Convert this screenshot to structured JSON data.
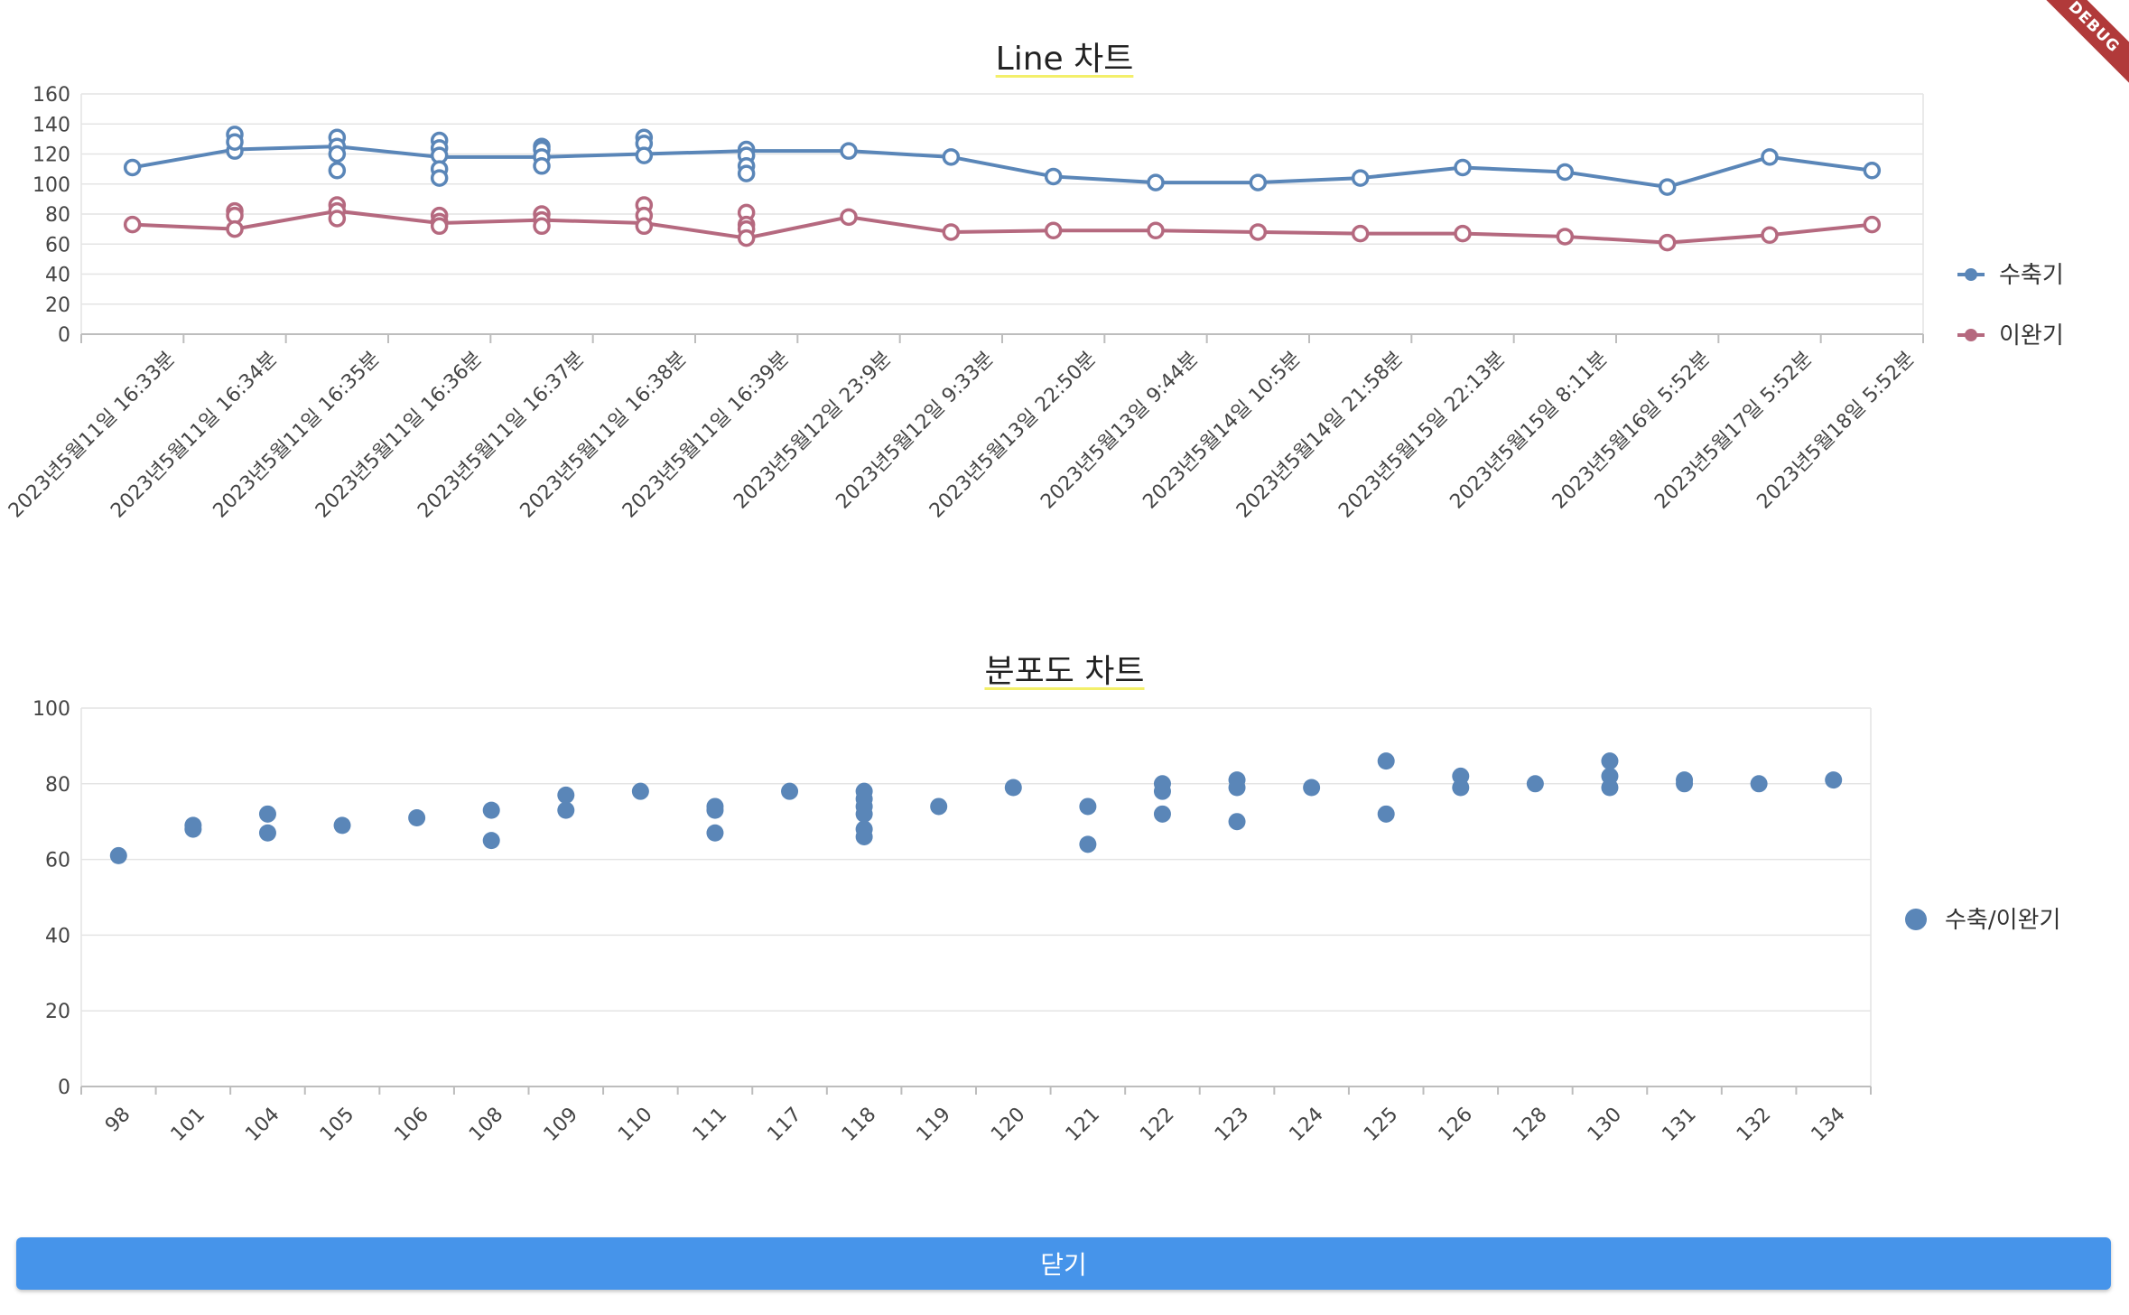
{
  "colors": {
    "series1": "#5a86b8",
    "series2": "#b5697f",
    "grid": "#e4e4e4",
    "axis": "#bdbdbd",
    "button": "#4694ea",
    "debug": "#b13a3a"
  },
  "debug_banner": "DEBUG",
  "close_button_label": "닫기",
  "chart_data": [
    {
      "type": "line",
      "title": "Line 차트",
      "legend_position": "right",
      "ylim": [
        0,
        160
      ],
      "yticks": [
        0,
        20,
        40,
        60,
        80,
        100,
        120,
        140,
        160
      ],
      "grid": true,
      "categories": [
        "2023년5월11일 16:33분",
        "2023년5월11일 16:34분",
        "2023년5월11일 16:35분",
        "2023년5월11일 16:36분",
        "2023년5월11일 16:37분",
        "2023년5월11일 16:38분",
        "2023년5월11일 16:39분",
        "2023년5월12일 23:9분",
        "2023년5월12일 9:33분",
        "2023년5월13일 22:50분",
        "2023년5월13일 9:44분",
        "2023년5월14일 10:5분",
        "2023년5월14일 21:58분",
        "2023년5월15일 22:13분",
        "2023년5월15일 8:11분",
        "2023년5월16일 5:52분",
        "2023년5월17일 5:52분",
        "2023년5월18일 5:52분"
      ],
      "series": [
        {
          "name": "수축기",
          "line": [
            111,
            123,
            125,
            118,
            118,
            120,
            122,
            122,
            118,
            105,
            101,
            101,
            104,
            111,
            108,
            98,
            118,
            109
          ],
          "points": [
            [
              111
            ],
            [
              133,
              122,
              128
            ],
            [
              131,
              125,
              120,
              109
            ],
            [
              129,
              124,
              119,
              110,
              104
            ],
            [
              125,
              123,
              118,
              112
            ],
            [
              131,
              127,
              119
            ],
            [
              123,
              119,
              112,
              107
            ],
            [
              122
            ],
            [
              118
            ],
            [
              105
            ],
            [
              101
            ],
            [
              101
            ],
            [
              104
            ],
            [
              111
            ],
            [
              108
            ],
            [
              98
            ],
            [
              118
            ],
            [
              109
            ]
          ]
        },
        {
          "name": "이완기",
          "line": [
            73,
            70,
            82,
            74,
            76,
            74,
            64,
            78,
            68,
            69,
            69,
            68,
            67,
            67,
            65,
            61,
            66,
            73
          ],
          "points": [
            [
              73
            ],
            [
              82,
              79,
              70
            ],
            [
              86,
              82,
              77
            ],
            [
              79,
              75,
              72
            ],
            [
              80,
              76,
              72
            ],
            [
              86,
              79,
              72
            ],
            [
              81,
              73,
              70,
              64
            ],
            [
              78
            ],
            [
              68
            ],
            [
              69
            ],
            [
              69
            ],
            [
              68
            ],
            [
              67
            ],
            [
              67
            ],
            [
              65
            ],
            [
              61
            ],
            [
              66
            ],
            [
              73
            ]
          ]
        }
      ]
    },
    {
      "type": "scatter",
      "title": "분포도 차트",
      "legend_position": "right",
      "ylim": [
        0,
        100
      ],
      "yticks": [
        0,
        20,
        40,
        60,
        80,
        100
      ],
      "grid": true,
      "categories": [
        "98",
        "101",
        "104",
        "105",
        "106",
        "108",
        "109",
        "110",
        "111",
        "117",
        "118",
        "119",
        "120",
        "121",
        "122",
        "123",
        "124",
        "125",
        "126",
        "128",
        "130",
        "131",
        "132",
        "134"
      ],
      "series": [
        {
          "name": "수축/이완기",
          "points": [
            [
              61
            ],
            [
              69,
              68
            ],
            [
              72,
              67
            ],
            [
              69
            ],
            [
              71
            ],
            [
              73,
              65
            ],
            [
              77,
              73
            ],
            [
              78
            ],
            [
              74,
              73,
              67
            ],
            [
              78
            ],
            [
              78,
              76,
              74,
              72,
              68,
              66
            ],
            [
              74
            ],
            [
              79
            ],
            [
              74,
              64
            ],
            [
              80,
              78,
              72
            ],
            [
              81,
              79,
              70
            ],
            [
              79
            ],
            [
              86,
              72
            ],
            [
              82,
              79
            ],
            [
              80
            ],
            [
              86,
              82,
              79
            ],
            [
              81,
              80
            ],
            [
              80
            ],
            [
              81
            ]
          ]
        }
      ]
    }
  ]
}
